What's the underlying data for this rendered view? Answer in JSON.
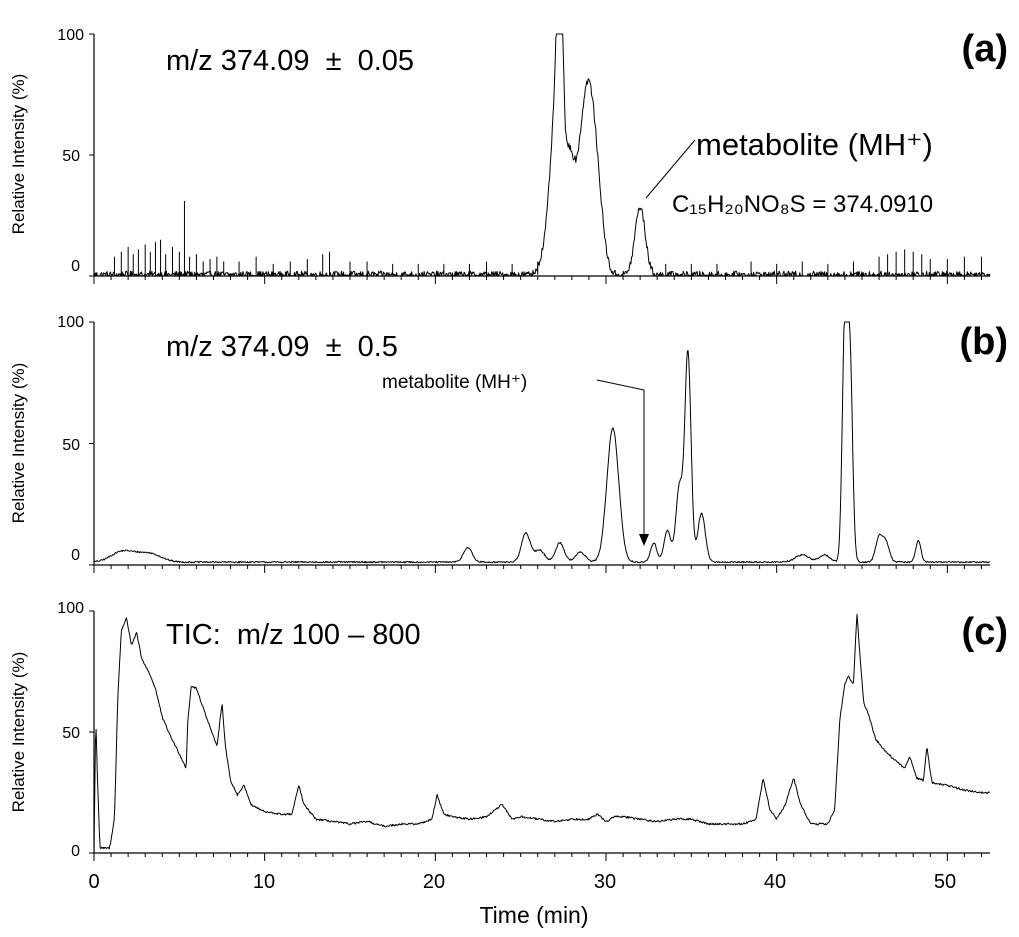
{
  "chart_data": [
    {
      "type": "line",
      "panel_label": "(a)",
      "annotation": "m/z 374.09  ±  0.05",
      "ylabel": "Relative Intensity (%)",
      "xlim": [
        0,
        52.5
      ],
      "ylim": [
        0,
        100
      ],
      "y_ticks": [
        "0",
        "50",
        "100"
      ],
      "peak_label": "metabolite (MH⁺)",
      "peak_x": 32.2,
      "formula_label": "C₁₅H₂₀NO₈S = 374.0910",
      "baseline": 0.5,
      "noise": 3,
      "spikes": [
        [
          1.2,
          8
        ],
        [
          1.6,
          10
        ],
        [
          2.0,
          12
        ],
        [
          2.3,
          9
        ],
        [
          2.6,
          11
        ],
        [
          3.0,
          13
        ],
        [
          3.3,
          10
        ],
        [
          3.6,
          14
        ],
        [
          3.9,
          15
        ],
        [
          4.2,
          9
        ],
        [
          4.6,
          12
        ],
        [
          5.0,
          10
        ],
        [
          5.3,
          31
        ],
        [
          5.6,
          8
        ],
        [
          6.0,
          9
        ],
        [
          6.4,
          6
        ],
        [
          6.8,
          7
        ],
        [
          7.2,
          8
        ],
        [
          7.6,
          6
        ],
        [
          8.5,
          6
        ],
        [
          9.5,
          8
        ],
        [
          10.5,
          5
        ],
        [
          11.5,
          6
        ],
        [
          12.5,
          7
        ],
        [
          13.4,
          9
        ],
        [
          13.8,
          10
        ],
        [
          15.0,
          6
        ],
        [
          16.0,
          6
        ],
        [
          17.5,
          5
        ],
        [
          19.0,
          5
        ],
        [
          20.5,
          5
        ],
        [
          22.0,
          5
        ],
        [
          23.0,
          6
        ],
        [
          24.5,
          5
        ],
        [
          26.0,
          6
        ],
        [
          33.5,
          5
        ],
        [
          35.0,
          5
        ],
        [
          36.5,
          5
        ],
        [
          38.5,
          6
        ],
        [
          40.0,
          5
        ],
        [
          41.5,
          6
        ],
        [
          43.0,
          5
        ],
        [
          44.5,
          6
        ],
        [
          46.0,
          8
        ],
        [
          46.5,
          9
        ],
        [
          47.0,
          10
        ],
        [
          47.5,
          11
        ],
        [
          48.0,
          10
        ],
        [
          48.5,
          9
        ],
        [
          49.0,
          7
        ],
        [
          50.0,
          7
        ],
        [
          51.0,
          8
        ],
        [
          52.0,
          8
        ]
      ],
      "peaks": [
        [
          27.3,
          100,
          0.17
        ],
        [
          27.0,
          60,
          0.3
        ],
        [
          27.8,
          42,
          0.28
        ],
        [
          28.5,
          38,
          0.4
        ],
        [
          29.0,
          52,
          0.35
        ],
        [
          29.5,
          30,
          0.35
        ],
        [
          32.0,
          28,
          0.3
        ],
        [
          26.4,
          8,
          0.3
        ]
      ]
    },
    {
      "type": "line",
      "panel_label": "(b)",
      "annotation": "m/z 374.09  ±  0.5",
      "ylabel": "Relative Intensity (%)",
      "xlim": [
        0,
        52.5
      ],
      "ylim": [
        0,
        100
      ],
      "y_ticks": [
        "0",
        "50",
        "100"
      ],
      "peak_label": "metabolite (MH⁺)",
      "peak_x": 32.3,
      "baseline": 1.2,
      "noise": 0.6,
      "spikes": [],
      "peaks": [
        [
          1.5,
          3,
          0.6
        ],
        [
          2.5,
          3,
          0.8
        ],
        [
          3.5,
          2,
          0.6
        ],
        [
          21.9,
          6,
          0.25
        ],
        [
          25.3,
          12,
          0.25
        ],
        [
          26.1,
          5,
          0.3
        ],
        [
          27.3,
          8,
          0.25
        ],
        [
          28.5,
          4,
          0.3
        ],
        [
          30.4,
          55,
          0.35
        ],
        [
          32.8,
          8,
          0.18
        ],
        [
          33.6,
          13,
          0.2
        ],
        [
          34.3,
          31,
          0.2
        ],
        [
          34.8,
          86,
          0.18
        ],
        [
          35.6,
          20,
          0.22
        ],
        [
          41.5,
          3,
          0.4
        ],
        [
          42.8,
          3,
          0.3
        ],
        [
          44.0,
          100,
          0.15
        ],
        [
          44.3,
          80,
          0.15
        ],
        [
          46.0,
          10,
          0.2
        ],
        [
          46.4,
          8,
          0.2
        ],
        [
          48.3,
          9,
          0.15
        ]
      ]
    },
    {
      "type": "line",
      "panel_label": "(c)",
      "annotation": "TIC:  m/z 100 – 800",
      "ylabel": "Relative Intensity (%)",
      "xlabel": "Time (min)",
      "xlim": [
        0,
        52.5
      ],
      "ylim": [
        0,
        100
      ],
      "y_ticks": [
        "0",
        "50",
        "100"
      ],
      "x_ticks": [
        "0",
        "10",
        "20",
        "30",
        "40",
        "50"
      ],
      "x_tick_values": [
        0,
        10,
        20,
        30,
        40,
        50
      ],
      "noise": 0.8,
      "spikes": [],
      "points": [
        [
          0,
          1
        ],
        [
          0.1,
          56
        ],
        [
          0.2,
          32
        ],
        [
          0.35,
          2
        ],
        [
          0.9,
          2
        ],
        [
          1.0,
          5
        ],
        [
          1.2,
          15
        ],
        [
          1.4,
          65
        ],
        [
          1.6,
          92
        ],
        [
          1.9,
          97
        ],
        [
          2.2,
          86
        ],
        [
          2.5,
          91
        ],
        [
          2.8,
          80
        ],
        [
          3.2,
          75
        ],
        [
          3.6,
          68
        ],
        [
          4.0,
          56
        ],
        [
          4.5,
          48
        ],
        [
          5.0,
          41
        ],
        [
          5.4,
          35
        ],
        [
          5.5,
          55
        ],
        [
          5.7,
          69
        ],
        [
          6.0,
          68
        ],
        [
          6.3,
          62
        ],
        [
          6.8,
          52
        ],
        [
          7.2,
          44
        ],
        [
          7.5,
          62
        ],
        [
          7.7,
          44
        ],
        [
          8.0,
          30
        ],
        [
          8.4,
          24
        ],
        [
          8.8,
          28
        ],
        [
          9.2,
          20
        ],
        [
          10,
          17
        ],
        [
          11,
          16
        ],
        [
          11.6,
          16
        ],
        [
          12.0,
          28
        ],
        [
          12.3,
          20
        ],
        [
          13,
          14
        ],
        [
          14,
          13
        ],
        [
          15,
          12
        ],
        [
          16,
          13
        ],
        [
          17,
          11
        ],
        [
          18,
          12
        ],
        [
          19,
          12
        ],
        [
          19.8,
          14
        ],
        [
          20.1,
          24
        ],
        [
          20.5,
          16
        ],
        [
          21,
          15
        ],
        [
          22,
          14
        ],
        [
          23,
          15
        ],
        [
          23.9,
          20
        ],
        [
          24.5,
          14
        ],
        [
          25,
          15
        ],
        [
          26,
          14
        ],
        [
          27,
          13
        ],
        [
          28,
          14
        ],
        [
          29,
          14
        ],
        [
          29.5,
          16
        ],
        [
          30,
          13
        ],
        [
          30.5,
          15
        ],
        [
          31,
          15
        ],
        [
          32,
          14
        ],
        [
          33,
          13
        ],
        [
          34,
          14
        ],
        [
          35,
          14
        ],
        [
          36,
          12
        ],
        [
          37,
          12
        ],
        [
          38,
          12
        ],
        [
          38.8,
          14
        ],
        [
          39.2,
          31
        ],
        [
          39.6,
          18
        ],
        [
          40,
          14
        ],
        [
          40.5,
          20
        ],
        [
          41.0,
          31
        ],
        [
          41.4,
          20
        ],
        [
          42,
          12
        ],
        [
          43,
          12
        ],
        [
          43.4,
          18
        ],
        [
          43.7,
          55
        ],
        [
          44.0,
          70
        ],
        [
          44.2,
          73
        ],
        [
          44.5,
          70
        ],
        [
          44.7,
          99
        ],
        [
          44.9,
          80
        ],
        [
          45.1,
          62
        ],
        [
          45.4,
          57
        ],
        [
          45.8,
          47
        ],
        [
          46.5,
          41
        ],
        [
          47.0,
          38
        ],
        [
          47.5,
          35
        ],
        [
          47.8,
          40
        ],
        [
          48.2,
          31
        ],
        [
          48.6,
          30
        ],
        [
          48.8,
          44
        ],
        [
          49.1,
          29
        ],
        [
          50,
          28
        ],
        [
          51,
          26
        ],
        [
          52,
          25
        ],
        [
          52.5,
          25
        ]
      ]
    }
  ]
}
